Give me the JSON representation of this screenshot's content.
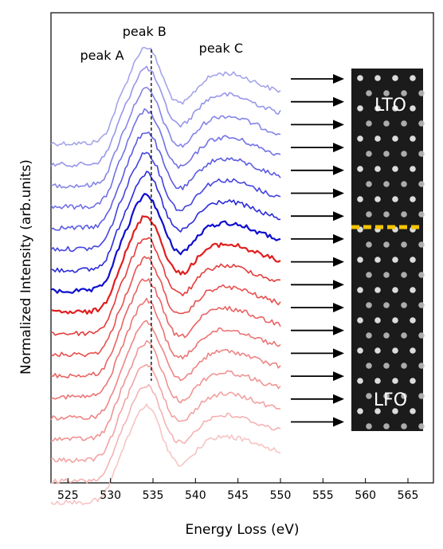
{
  "chart_data": {
    "type": "line",
    "title": "",
    "xlabel": "Energy Loss (eV)",
    "ylabel": "Normalized Intensity (arb.units)",
    "xlim": [
      523,
      568
    ],
    "xticks": [
      525,
      530,
      535,
      540,
      545,
      550,
      555,
      560,
      565
    ],
    "yticks": [],
    "grid": false,
    "legend": "none",
    "energy_range": [
      523,
      550
    ],
    "guide_line_x": 534.8,
    "annotations": [
      {
        "id": "peak-a",
        "text": "peak A",
        "x": 529.0
      },
      {
        "id": "peak-b",
        "text": "peak B",
        "x": 534.0
      },
      {
        "id": "peak-c",
        "text": "peak C",
        "x": 543.0
      }
    ],
    "image_labels": {
      "top": "LTO",
      "bottom": "LFO"
    },
    "interface_color": "#f5c400",
    "series": [
      {
        "color": "#a4a4ea",
        "peak_height": 1.0
      },
      {
        "color": "#9696ea",
        "peak_height": 1.0
      },
      {
        "color": "#8585e8",
        "peak_height": 1.0
      },
      {
        "color": "#7272e6",
        "peak_height": 1.0
      },
      {
        "color": "#5c5ce4",
        "peak_height": 1.0
      },
      {
        "color": "#4444e0",
        "peak_height": 1.0
      },
      {
        "color": "#2b2bda",
        "peak_height": 1.0
      },
      {
        "color": "#0f0fcf",
        "peak_height": 1.0
      },
      {
        "color": "#e01f1f",
        "peak_height": 1.0
      },
      {
        "color": "#e43c3c",
        "peak_height": 1.0
      },
      {
        "color": "#e85050",
        "peak_height": 1.0
      },
      {
        "color": "#ea6363",
        "peak_height": 1.0
      },
      {
        "color": "#ec7575",
        "peak_height": 1.0
      },
      {
        "color": "#ee8585",
        "peak_height": 1.0
      },
      {
        "color": "#f09494",
        "peak_height": 1.0
      },
      {
        "color": "#f2a3a3",
        "peak_height": 1.0
      },
      {
        "color": "#f4b3b3",
        "peak_height": 1.0
      },
      {
        "color": "#f7c4c4",
        "peak_height": 1.0
      }
    ]
  }
}
